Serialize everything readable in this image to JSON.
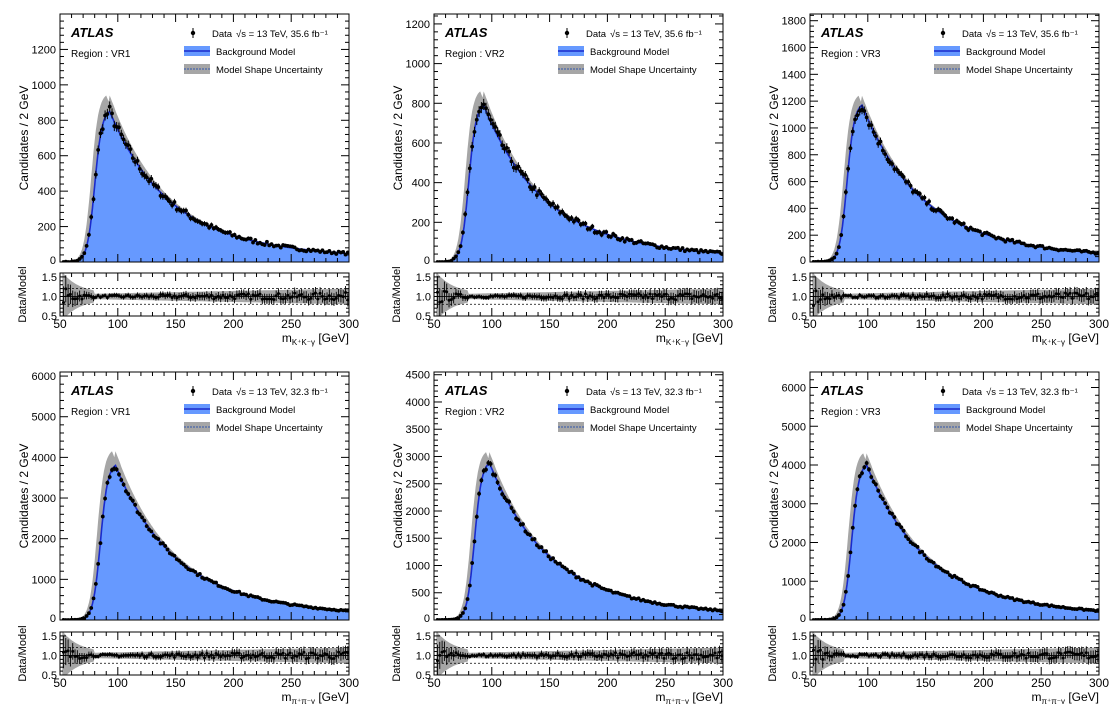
{
  "chart_data": [
    {
      "type": "histogram-ratio",
      "experiment": "ATLAS",
      "region": "Region : VR1",
      "legend": {
        "data": "Data",
        "energy": "√s = 13 TeV, 35.6 fb⁻¹",
        "model": "Background Model",
        "uncertainty": "Model Shape Uncertainty"
      },
      "ylabel": "Candidates / 2 GeV",
      "xlabel": "m_{K⁺K⁻γ} [GeV]",
      "ratio_label": "Data/Model",
      "xlim": [
        50,
        300
      ],
      "ylim": [
        0,
        1400
      ],
      "ratio_ylim": [
        0.5,
        1.6
      ],
      "xticks": [
        "50",
        "100",
        "150",
        "200",
        "250",
        "300"
      ],
      "yticks": [
        "200",
        "400",
        "600",
        "800",
        "1000",
        "1200"
      ],
      "ratio_yticks": [
        "0.5",
        "1.0",
        "1.5"
      ],
      "peak": {
        "x": 93,
        "y": 850,
        "band_high": 940,
        "band_low": 760
      }
    },
    {
      "type": "histogram-ratio",
      "experiment": "ATLAS",
      "region": "Region : VR2",
      "legend": {
        "data": "Data",
        "energy": "√s = 13 TeV, 35.6 fb⁻¹",
        "model": "Background Model",
        "uncertainty": "Model Shape Uncertainty"
      },
      "ylabel": "Candidates / 2 GeV",
      "xlabel": "m_{K⁺K⁻γ} [GeV]",
      "ratio_label": "Data/Model",
      "xlim": [
        50,
        300
      ],
      "ylim": [
        0,
        1250
      ],
      "ratio_ylim": [
        0.5,
        1.6
      ],
      "xticks": [
        "50",
        "100",
        "150",
        "200",
        "250",
        "300"
      ],
      "yticks": [
        "200",
        "400",
        "600",
        "800",
        "1000",
        "1200"
      ],
      "ratio_yticks": [
        "0.5",
        "1.0",
        "1.5"
      ],
      "peak": {
        "x": 93,
        "y": 790,
        "band_high": 860,
        "band_low": 700
      }
    },
    {
      "type": "histogram-ratio",
      "experiment": "ATLAS",
      "region": "Region : VR3",
      "legend": {
        "data": "Data",
        "energy": "√s = 13 TeV, 35.6 fb⁻¹",
        "model": "Background Model",
        "uncertainty": "Model Shape Uncertainty"
      },
      "ylabel": "Candidates / 2 GeV",
      "xlabel": "m_{K⁺K⁻γ} [GeV]",
      "ratio_label": "Data/Model",
      "xlim": [
        50,
        300
      ],
      "ylim": [
        0,
        1850
      ],
      "ratio_ylim": [
        0.5,
        1.6
      ],
      "xticks": [
        "50",
        "100",
        "150",
        "200",
        "250",
        "300"
      ],
      "yticks": [
        "200",
        "400",
        "600",
        "800",
        "1000",
        "1200",
        "1400",
        "1600",
        "1800"
      ],
      "ratio_yticks": [
        "0.5",
        "1.0",
        "1.5"
      ],
      "peak": {
        "x": 95,
        "y": 1170,
        "band_high": 1240,
        "band_low": 1080
      }
    },
    {
      "type": "histogram-ratio",
      "experiment": "ATLAS",
      "region": "Region : VR1",
      "legend": {
        "data": "Data",
        "energy": "√s = 13 TeV, 32.3 fb⁻¹",
        "model": "Background Model",
        "uncertainty": "Model Shape Uncertainty"
      },
      "ylabel": "Candidates / 2 GeV",
      "xlabel": "m_{π⁺π⁻γ} [GeV]",
      "ratio_label": "Data/Model",
      "xlim": [
        50,
        300
      ],
      "ylim": [
        0,
        6100
      ],
      "ratio_ylim": [
        0.5,
        1.6
      ],
      "xticks": [
        "50",
        "100",
        "150",
        "200",
        "250",
        "300"
      ],
      "yticks": [
        "1000",
        "2000",
        "3000",
        "4000",
        "5000",
        "6000"
      ],
      "ratio_yticks": [
        "0.5",
        "1.0",
        "1.5"
      ],
      "peak": {
        "x": 98,
        "y": 3800,
        "band_high": 4150,
        "band_low": 3500
      }
    },
    {
      "type": "histogram-ratio",
      "experiment": "ATLAS",
      "region": "Region : VR2",
      "legend": {
        "data": "Data",
        "energy": "√s = 13 TeV, 32.3 fb⁻¹",
        "model": "Background Model",
        "uncertainty": "Model Shape Uncertainty"
      },
      "ylabel": "Candidates / 2 GeV",
      "xlabel": "m_{π⁺π⁻γ} [GeV]",
      "ratio_label": "Data/Model",
      "xlim": [
        50,
        300
      ],
      "ylim": [
        0,
        4550
      ],
      "ratio_ylim": [
        0.5,
        1.6
      ],
      "xticks": [
        "50",
        "100",
        "150",
        "200",
        "250",
        "300"
      ],
      "yticks": [
        "500",
        "1000",
        "1500",
        "2000",
        "2500",
        "3000",
        "3500",
        "4000",
        "4500"
      ],
      "ratio_yticks": [
        "0.5",
        "1.0",
        "1.5"
      ],
      "peak": {
        "x": 98,
        "y": 2880,
        "band_high": 3080,
        "band_low": 2650
      }
    },
    {
      "type": "histogram-ratio",
      "experiment": "ATLAS",
      "region": "Region : VR3",
      "legend": {
        "data": "Data",
        "energy": "√s = 13 TeV, 32.3 fb⁻¹",
        "model": "Background Model",
        "uncertainty": "Model Shape Uncertainty"
      },
      "ylabel": "Candidates / 2 GeV",
      "xlabel": "m_{π⁺π⁻γ} [GeV]",
      "ratio_label": "Data/Model",
      "xlim": [
        50,
        300
      ],
      "ylim": [
        0,
        6400
      ],
      "ratio_ylim": [
        0.5,
        1.6
      ],
      "xticks": [
        "50",
        "100",
        "150",
        "200",
        "250",
        "300"
      ],
      "yticks": [
        "1000",
        "2000",
        "3000",
        "4000",
        "5000",
        "6000"
      ],
      "ratio_yticks": [
        "0.5",
        "1.0",
        "1.5"
      ],
      "peak": {
        "x": 99,
        "y": 4000,
        "band_high": 4300,
        "band_low": 3700
      }
    }
  ],
  "colors": {
    "model_fill": "#6699ff",
    "model_line": "#1a2bcc",
    "band": "#a6a6a6",
    "data": "#000000"
  }
}
